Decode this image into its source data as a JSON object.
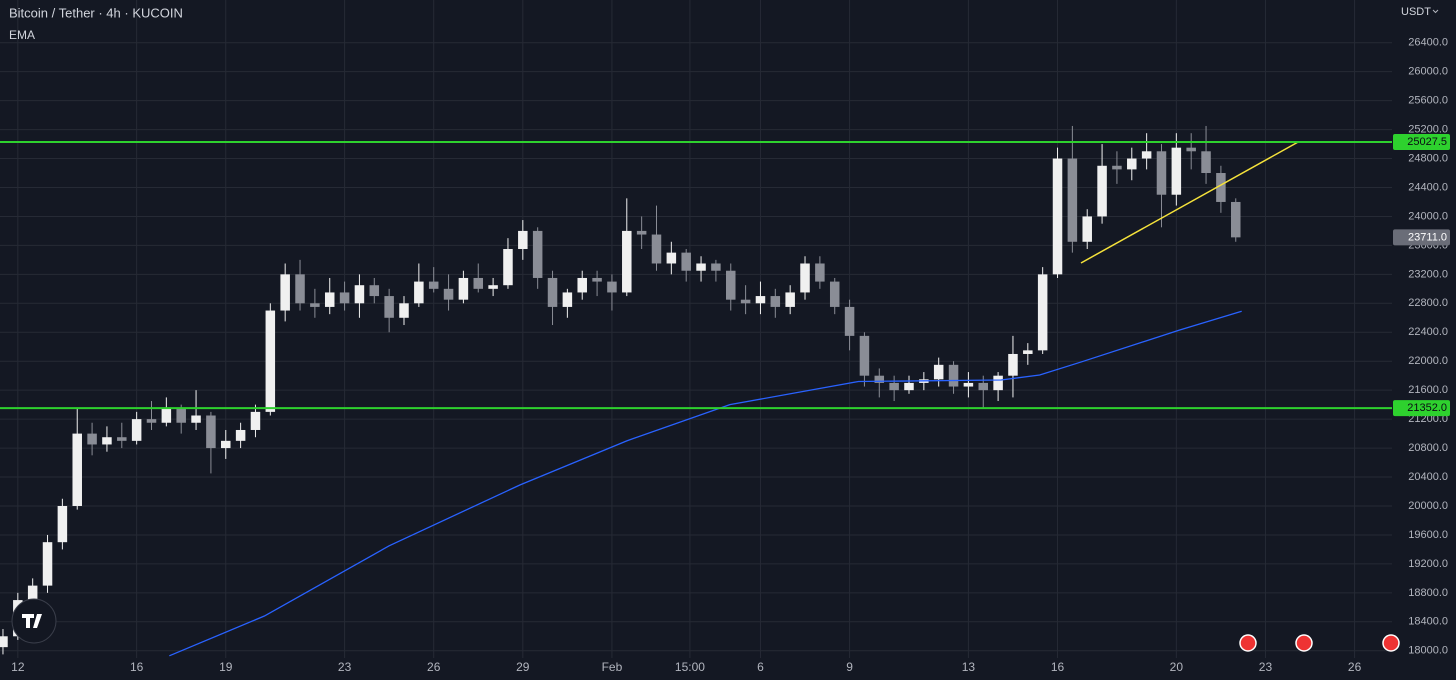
{
  "chart_data": {
    "type": "candlestick",
    "title": "Bitcoin / Tether · 4h · KUCOIN",
    "currency": "USDT",
    "background": "#141823",
    "grid": true,
    "grid_color": "#262a35",
    "up_color": "#f0f0f0",
    "down_color": "#8a8d96",
    "xlim": [
      -0.6,
      46.26
    ],
    "ylim": [
      17900,
      26990
    ],
    "xticks": [
      {
        "value": 0,
        "label": "12"
      },
      {
        "value": 4,
        "label": "16"
      },
      {
        "value": 7,
        "label": "19"
      },
      {
        "value": 11,
        "label": "23"
      },
      {
        "value": 14,
        "label": "26"
      },
      {
        "value": 17,
        "label": "29"
      },
      {
        "value": 20,
        "label": "Feb"
      },
      {
        "value": 22.625,
        "label": "15:00"
      },
      {
        "value": 25,
        "label": "6"
      },
      {
        "value": 28,
        "label": "9"
      },
      {
        "value": 32,
        "label": "13"
      },
      {
        "value": 35,
        "label": "16"
      },
      {
        "value": 39,
        "label": "20"
      },
      {
        "value": 42,
        "label": "23"
      },
      {
        "value": 45,
        "label": "26"
      }
    ],
    "yticks": [
      {
        "value": 18000,
        "label": "18000.0"
      },
      {
        "value": 18400,
        "label": "18400.0"
      },
      {
        "value": 18800,
        "label": "18800.0"
      },
      {
        "value": 19200,
        "label": "19200.0"
      },
      {
        "value": 19600,
        "label": "19600.0"
      },
      {
        "value": 20000,
        "label": "20000.0"
      },
      {
        "value": 20400,
        "label": "20400.0"
      },
      {
        "value": 20800,
        "label": "20800.0"
      },
      {
        "value": 21200,
        "label": "21200.0"
      },
      {
        "value": 21600,
        "label": "21600.0"
      },
      {
        "value": 22000,
        "label": "22000.0"
      },
      {
        "value": 22400,
        "label": "22400.0"
      },
      {
        "value": 22800,
        "label": "22800.0"
      },
      {
        "value": 23200,
        "label": "23200.0"
      },
      {
        "value": 23600,
        "label": "23600.0"
      },
      {
        "value": 24000,
        "label": "24000.0"
      },
      {
        "value": 24400,
        "label": "24400.0"
      },
      {
        "value": 24800,
        "label": "24800.0"
      },
      {
        "value": 25200,
        "label": "25200.0"
      },
      {
        "value": 25600,
        "label": "25600.0"
      },
      {
        "value": 26000,
        "label": "26000.0"
      },
      {
        "value": 26400,
        "label": "26400.0"
      }
    ],
    "x": [
      -0.5,
      0,
      0.5,
      1,
      1.5,
      2,
      2.5,
      3,
      3.5,
      4,
      4.5,
      5,
      5.5,
      6,
      6.5,
      7,
      7.5,
      8,
      8.5,
      9,
      9.5,
      10,
      10.5,
      11,
      11.5,
      12,
      12.5,
      13,
      13.5,
      14,
      14.5,
      15,
      15.5,
      16,
      16.5,
      17,
      17.5,
      18,
      18.5,
      19,
      19.5,
      20,
      20.5,
      21,
      21.5,
      22,
      22.5,
      23,
      23.5,
      24,
      24.5,
      25,
      25.5,
      26,
      26.5,
      27,
      27.5,
      28,
      28.5,
      29,
      29.5,
      30,
      30.5,
      31,
      31.5,
      32,
      32.5,
      33,
      33.5,
      34,
      34.5,
      35,
      35.5,
      36,
      36.5,
      37,
      37.5,
      38,
      38.5,
      39,
      39.5,
      40,
      40.5,
      41
    ],
    "ohlc": [
      [
        18050,
        18300,
        17950,
        18200
      ],
      [
        18200,
        18800,
        18150,
        18700
      ],
      [
        18700,
        19000,
        18600,
        18900
      ],
      [
        18900,
        19600,
        18800,
        19500
      ],
      [
        19500,
        20100,
        19400,
        20000
      ],
      [
        20000,
        21350,
        19950,
        21000
      ],
      [
        21000,
        21150,
        20700,
        20850
      ],
      [
        20850,
        21100,
        20750,
        20950
      ],
      [
        20950,
        21150,
        20800,
        20900
      ],
      [
        20900,
        21300,
        20850,
        21200
      ],
      [
        21200,
        21450,
        21050,
        21150
      ],
      [
        21150,
        21500,
        21100,
        21350
      ],
      [
        21350,
        21400,
        21000,
        21150
      ],
      [
        21150,
        21600,
        21050,
        21250
      ],
      [
        21250,
        21300,
        20450,
        20800
      ],
      [
        20800,
        21050,
        20650,
        20900
      ],
      [
        20900,
        21150,
        20800,
        21050
      ],
      [
        21050,
        21400,
        20950,
        21300
      ],
      [
        21300,
        22800,
        21250,
        22700
      ],
      [
        22700,
        23350,
        22550,
        23200
      ],
      [
        23200,
        23400,
        22700,
        22800
      ],
      [
        22800,
        23000,
        22600,
        22750
      ],
      [
        22750,
        23150,
        22650,
        22950
      ],
      [
        22950,
        23100,
        22700,
        22800
      ],
      [
        22800,
        23200,
        22600,
        23050
      ],
      [
        23050,
        23150,
        22800,
        22900
      ],
      [
        22900,
        23000,
        22400,
        22600
      ],
      [
        22600,
        22900,
        22500,
        22800
      ],
      [
        22800,
        23350,
        22750,
        23100
      ],
      [
        23100,
        23300,
        22950,
        23000
      ],
      [
        23000,
        23200,
        22700,
        22850
      ],
      [
        22850,
        23250,
        22800,
        23150
      ],
      [
        23150,
        23350,
        22950,
        23000
      ],
      [
        23000,
        23150,
        22900,
        23050
      ],
      [
        23050,
        23700,
        23000,
        23550
      ],
      [
        23550,
        23950,
        23400,
        23800
      ],
      [
        23800,
        23850,
        23000,
        23150
      ],
      [
        23150,
        23250,
        22500,
        22750
      ],
      [
        22750,
        23000,
        22600,
        22950
      ],
      [
        22950,
        23250,
        22850,
        23150
      ],
      [
        23150,
        23250,
        22900,
        23100
      ],
      [
        23100,
        23200,
        22700,
        22950
      ],
      [
        22950,
        24250,
        22900,
        23800
      ],
      [
        23800,
        24000,
        23550,
        23750
      ],
      [
        23750,
        24150,
        23250,
        23350
      ],
      [
        23350,
        23650,
        23200,
        23500
      ],
      [
        23500,
        23550,
        23100,
        23250
      ],
      [
        23250,
        23450,
        23100,
        23350
      ],
      [
        23350,
        23400,
        23100,
        23250
      ],
      [
        23250,
        23350,
        22700,
        22850
      ],
      [
        22850,
        23050,
        22650,
        22800
      ],
      [
        22800,
        23100,
        22650,
        22900
      ],
      [
        22900,
        23000,
        22600,
        22750
      ],
      [
        22750,
        23050,
        22650,
        22950
      ],
      [
        22950,
        23450,
        22850,
        23350
      ],
      [
        23350,
        23450,
        23000,
        23100
      ],
      [
        23100,
        23150,
        22650,
        22750
      ],
      [
        22750,
        22850,
        22150,
        22350
      ],
      [
        22350,
        22400,
        21650,
        21800
      ],
      [
        21800,
        21900,
        21500,
        21700
      ],
      [
        21700,
        21800,
        21450,
        21600
      ],
      [
        21600,
        21800,
        21550,
        21700
      ],
      [
        21700,
        21850,
        21600,
        21750
      ],
      [
        21750,
        22050,
        21650,
        21950
      ],
      [
        21950,
        22000,
        21550,
        21650
      ],
      [
        21650,
        21850,
        21500,
        21700
      ],
      [
        21700,
        21800,
        21350,
        21600
      ],
      [
        21600,
        21850,
        21450,
        21800
      ],
      [
        21800,
        22350,
        21500,
        22100
      ],
      [
        22100,
        22250,
        21950,
        22150
      ],
      [
        22150,
        23300,
        22100,
        23200
      ],
      [
        23200,
        24950,
        23150,
        24800
      ],
      [
        24800,
        25250,
        23500,
        23650
      ],
      [
        23650,
        24100,
        23550,
        24000
      ],
      [
        24000,
        25000,
        23900,
        24700
      ],
      [
        24700,
        24900,
        24450,
        24650
      ],
      [
        24650,
        24950,
        24500,
        24800
      ],
      [
        24800,
        25150,
        24650,
        24900
      ],
      [
        24900,
        25000,
        23850,
        24300
      ],
      [
        24300,
        25150,
        24150,
        24950
      ],
      [
        24950,
        25150,
        24650,
        24900
      ],
      [
        24900,
        25250,
        24450,
        24600
      ],
      [
        24600,
        24700,
        24050,
        24200
      ],
      [
        24200,
        24250,
        23650,
        23711
      ]
    ],
    "ema": {
      "name": "EMA",
      "color": "#2962ff",
      "x": [
        5.1,
        8.3,
        12.5,
        16.9,
        20.5,
        23.97,
        28.3,
        33.1,
        34.4,
        35.8,
        39.1,
        41.2
      ],
      "values": [
        17930,
        18480,
        19450,
        20290,
        20900,
        21400,
        21720,
        21740,
        21810,
        21990,
        22430,
        22690
      ]
    },
    "levels": [
      {
        "value": 25027.5,
        "label": "25027.5",
        "color": "#2ed12e"
      },
      {
        "value": 21352.0,
        "label": "21352.0",
        "color": "#2ed12e"
      }
    ],
    "last_price": {
      "value": 23711.0,
      "label": "23711.0",
      "color": "#6a6d78"
    },
    "trendline": {
      "color": "#f5e23b",
      "x": [
        35.79,
        43.1
      ],
      "values": [
        23357,
        25028
      ]
    }
  }
}
